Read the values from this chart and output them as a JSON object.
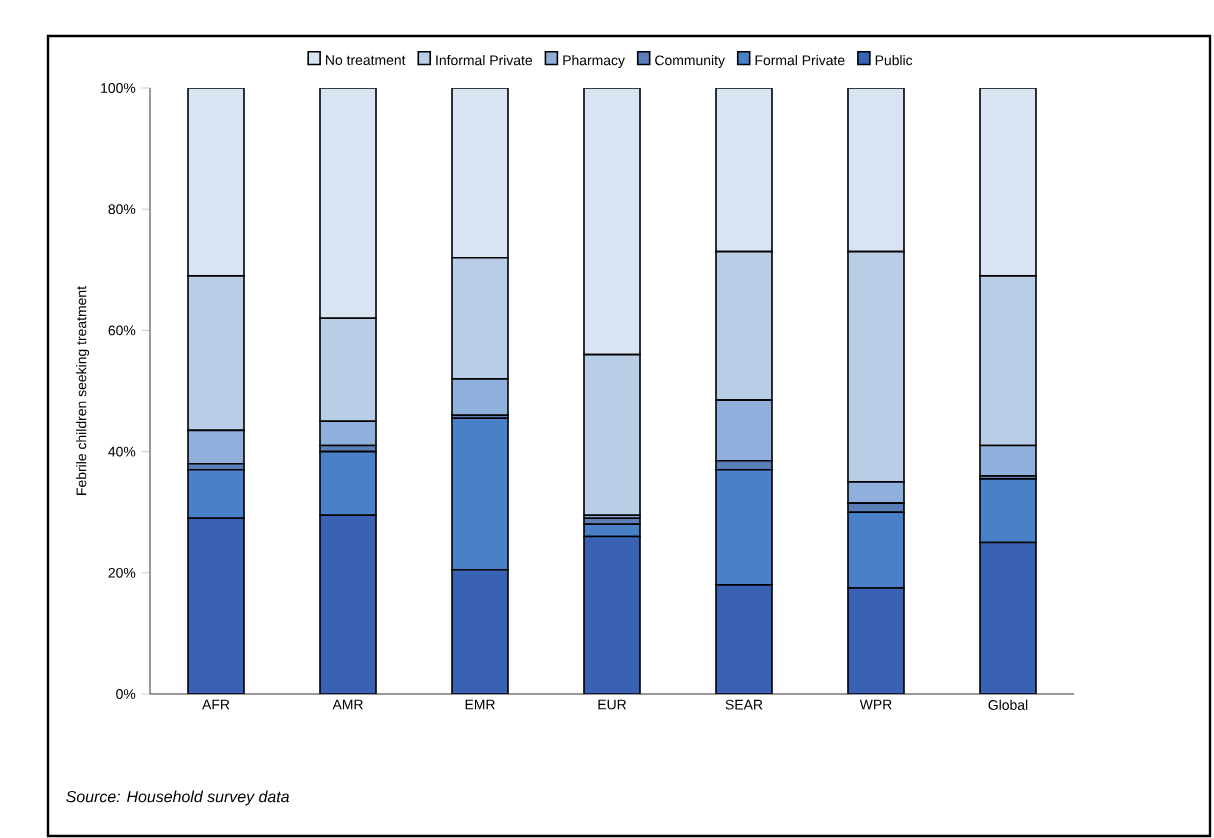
{
  "chart_data": {
    "type": "bar",
    "stacked": true,
    "ylabel": "Febrile children seeking treatment",
    "categories": [
      "AFR",
      "AMR",
      "EMR",
      "EUR",
      "SEAR",
      "WPR",
      "Global"
    ],
    "series": [
      {
        "name": "Public",
        "color": "#3a62b4",
        "values": [
          29,
          29.5,
          20.5,
          26,
          18,
          17.5,
          25
        ]
      },
      {
        "name": "Formal Private",
        "color": "#4a80c8",
        "values": [
          8,
          10.5,
          25,
          2,
          19,
          12.5,
          10.5
        ]
      },
      {
        "name": "Community",
        "color": "#5a7fb8",
        "values": [
          1,
          1,
          0.5,
          1,
          1.5,
          1.5,
          0.5
        ]
      },
      {
        "name": "Pharmacy",
        "color": "#8fb0dc",
        "values": [
          5.5,
          4,
          6,
          0.5,
          10,
          3.5,
          5
        ]
      },
      {
        "name": "Informal Private",
        "color": "#b8cde6",
        "values": [
          25.5,
          17,
          20,
          26.5,
          24.5,
          38,
          28
        ]
      },
      {
        "name": "No treatment",
        "color": "#d8e4f2",
        "values": [
          31,
          38,
          28,
          44,
          27,
          27,
          31
        ]
      }
    ],
    "ylim": [
      0,
      100
    ],
    "yticks": [
      {
        "value": 0,
        "label": "0%"
      },
      {
        "value": 20,
        "label": "20%"
      },
      {
        "value": 40,
        "label": "40%"
      },
      {
        "value": 60,
        "label": "60%"
      },
      {
        "value": 80,
        "label": "80%"
      },
      {
        "value": 100,
        "label": "100%"
      }
    ],
    "legend": "top",
    "grid": false,
    "annotations": [
      "Source: Household survey data"
    ]
  }
}
